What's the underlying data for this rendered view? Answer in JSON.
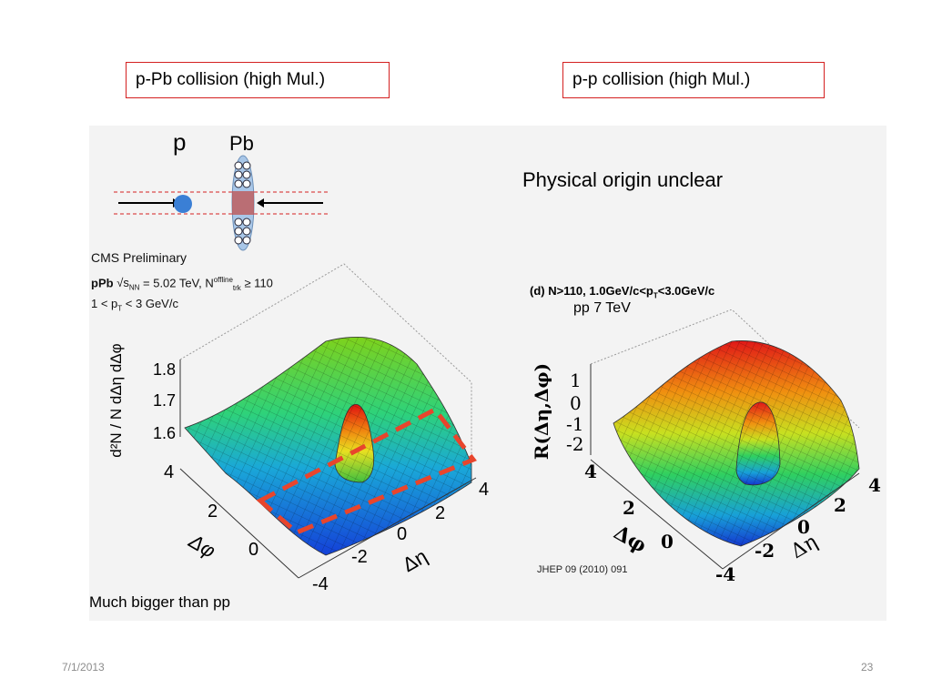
{
  "slide": {
    "left_title": "p-Pb collision (high Mul.)",
    "right_title": "p-p collision (high Mul.)",
    "right_note": "Physical origin unclear",
    "left_note": "Much bigger than pp",
    "date": "7/1/2013",
    "page_number": "23"
  },
  "diagram": {
    "proton_label": "p",
    "lead_label": "Pb",
    "proton_color": "#3a7fd5",
    "overlap_color": "#c0504d"
  },
  "left_plot": {
    "header": "CMS Preliminary",
    "line1_prefix": "pPb",
    "line1_energy": "= 5.02 TeV, N",
    "line1_sup": "offline",
    "line1_sub": "trk",
    "line1_cut": "≥ 110",
    "line2": "1 < p",
    "line2_sub": "T",
    "line2_rest": "< 3 GeV/c",
    "z_label": "d²N / N dΔη dΔφ",
    "z_ticks": [
      "1.8",
      "1.7",
      "1.6"
    ],
    "phi_ticks": [
      "4",
      "2",
      "0"
    ],
    "phi_label": "Δφ",
    "eta_ticks": [
      "4",
      "2",
      "0",
      "-2",
      "-4"
    ],
    "eta_label": "Δη",
    "highlight_color": "#e8452c"
  },
  "right_plot": {
    "header": "(d) N>110, 1.0GeV/c<p",
    "header_sub": "T",
    "header_rest": "<3.0GeV/c",
    "energy": "pp 7 TeV",
    "z_label": "R(Δη,Δφ)",
    "z_ticks": [
      "1",
      "0",
      "-1",
      "-2"
    ],
    "phi_ticks": [
      "4",
      "2",
      "0"
    ],
    "phi_label": "Δφ",
    "eta_ticks": [
      "4",
      "2",
      "0",
      "-2",
      "-4"
    ],
    "eta_label": "Δη",
    "reference": "JHEP 09 (2010) 091"
  }
}
